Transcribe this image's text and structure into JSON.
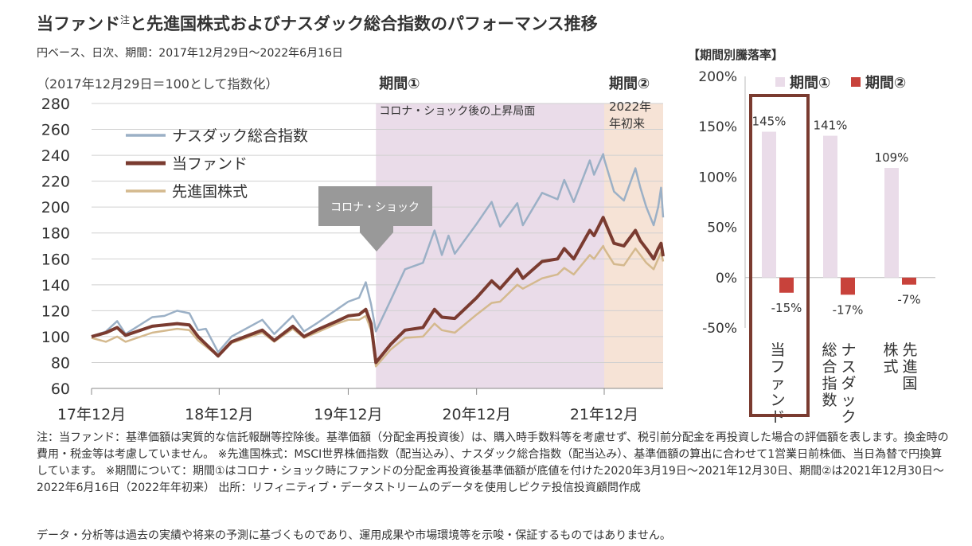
{
  "title": "当ファンド",
  "title_sup": "注",
  "title_rest": "と先進国株式およびナスダック総合指数のパフォーマンス推移",
  "subtitle": "円ベース、日次、期間：2017年12月29日～2022年6月16日",
  "chart_data": [
    {
      "type": "line",
      "note": "（2017年12月29日＝100として指数化）",
      "ylim": [
        60,
        280
      ],
      "yticks": [
        "60",
        "80",
        "100",
        "120",
        "140",
        "160",
        "180",
        "200",
        "220",
        "240",
        "260",
        "280"
      ],
      "xticks": [
        "17年12月",
        "18年12月",
        "19年12月",
        "20年12月",
        "21年12月"
      ],
      "x_range": [
        "2017-12-29",
        "2022-06-16"
      ],
      "period1": {
        "label": "期間①",
        "desc": "コロナ・ショック後の上昇局面",
        "start": "2020-03-19",
        "end": "2021-12-30",
        "color": "#eadce9"
      },
      "period2": {
        "label": "期間②",
        "desc1": "2022年",
        "desc2": "年初来",
        "start": "2021-12-30",
        "end": "2022-06-16",
        "color": "#f6e3d6"
      },
      "callout": "コロナ・ショック",
      "series": [
        {
          "name": "ナスダック総合指数",
          "color": "#9bb0c6",
          "width": 2.5,
          "points": [
            [
              "2017-12-29",
              100
            ],
            [
              "2018-02-08",
              104
            ],
            [
              "2018-03-12",
              112
            ],
            [
              "2018-04-05",
              102
            ],
            [
              "2018-06-20",
              115
            ],
            [
              "2018-07-25",
              116
            ],
            [
              "2018-08-30",
              120
            ],
            [
              "2018-10-04",
              118
            ],
            [
              "2018-10-29",
              105
            ],
            [
              "2018-11-20",
              106
            ],
            [
              "2018-12-25",
              88
            ],
            [
              "2019-02-01",
              100
            ],
            [
              "2019-04-30",
              113
            ],
            [
              "2019-06-03",
              102
            ],
            [
              "2019-07-26",
              116
            ],
            [
              "2019-08-27",
              104
            ],
            [
              "2019-10-01",
              110
            ],
            [
              "2019-11-29",
              121
            ],
            [
              "2019-12-31",
              127
            ],
            [
              "2020-01-31",
              130
            ],
            [
              "2020-02-19",
              142
            ],
            [
              "2020-03-05",
              125
            ],
            [
              "2020-03-19",
              104
            ],
            [
              "2020-04-30",
              128
            ],
            [
              "2020-06-10",
              152
            ],
            [
              "2020-07-31",
              157
            ],
            [
              "2020-09-02",
              182
            ],
            [
              "2020-09-23",
              163
            ],
            [
              "2020-10-12",
              178
            ],
            [
              "2020-10-30",
              164
            ],
            [
              "2020-12-31",
              187
            ],
            [
              "2021-02-12",
              204
            ],
            [
              "2021-03-08",
              185
            ],
            [
              "2021-04-26",
              203
            ],
            [
              "2021-05-12",
              186
            ],
            [
              "2021-07-06",
              211
            ],
            [
              "2021-08-19",
              206
            ],
            [
              "2021-09-07",
              221
            ],
            [
              "2021-10-04",
              204
            ],
            [
              "2021-11-19",
              236
            ],
            [
              "2021-12-01",
              225
            ],
            [
              "2021-12-27",
              241
            ],
            [
              "2021-12-30",
              237
            ],
            [
              "2022-01-27",
              212
            ],
            [
              "2022-02-24",
              205
            ],
            [
              "2022-03-29",
              230
            ],
            [
              "2022-04-12",
              215
            ],
            [
              "2022-04-29",
              200
            ],
            [
              "2022-05-20",
              186
            ],
            [
              "2022-06-02",
              200
            ],
            [
              "2022-06-10",
              215
            ],
            [
              "2022-06-16",
              192
            ]
          ]
        },
        {
          "name": "当ファンド",
          "color": "#7a3b30",
          "width": 4,
          "points": [
            [
              "2017-12-29",
              100
            ],
            [
              "2018-02-08",
              103
            ],
            [
              "2018-03-12",
              107
            ],
            [
              "2018-04-05",
              101
            ],
            [
              "2018-06-20",
              108
            ],
            [
              "2018-08-30",
              110
            ],
            [
              "2018-10-04",
              109
            ],
            [
              "2018-10-29",
              100
            ],
            [
              "2018-12-25",
              85
            ],
            [
              "2019-02-01",
              96
            ],
            [
              "2019-04-30",
              105
            ],
            [
              "2019-06-03",
              97
            ],
            [
              "2019-07-26",
              108
            ],
            [
              "2019-08-27",
              100
            ],
            [
              "2019-10-01",
              105
            ],
            [
              "2019-11-29",
              112
            ],
            [
              "2019-12-31",
              116
            ],
            [
              "2020-01-31",
              117
            ],
            [
              "2020-02-19",
              121
            ],
            [
              "2020-03-05",
              110
            ],
            [
              "2020-03-19",
              80
            ],
            [
              "2020-04-30",
              94
            ],
            [
              "2020-06-10",
              105
            ],
            [
              "2020-07-31",
              107
            ],
            [
              "2020-09-02",
              121
            ],
            [
              "2020-09-23",
              115
            ],
            [
              "2020-10-30",
              114
            ],
            [
              "2020-12-31",
              130
            ],
            [
              "2021-02-12",
              143
            ],
            [
              "2021-03-08",
              137
            ],
            [
              "2021-04-26",
              152
            ],
            [
              "2021-05-12",
              145
            ],
            [
              "2021-07-06",
              158
            ],
            [
              "2021-08-19",
              160
            ],
            [
              "2021-09-07",
              168
            ],
            [
              "2021-10-04",
              160
            ],
            [
              "2021-11-19",
              182
            ],
            [
              "2021-12-01",
              178
            ],
            [
              "2021-12-27",
              192
            ],
            [
              "2021-12-30",
              190
            ],
            [
              "2022-01-27",
              172
            ],
            [
              "2022-02-24",
              170
            ],
            [
              "2022-03-29",
              182
            ],
            [
              "2022-04-12",
              174
            ],
            [
              "2022-04-29",
              168
            ],
            [
              "2022-05-20",
              160
            ],
            [
              "2022-06-02",
              168
            ],
            [
              "2022-06-10",
              172
            ],
            [
              "2022-06-16",
              162
            ]
          ]
        },
        {
          "name": "先進国株式",
          "color": "#d4b98e",
          "width": 2.5,
          "points": [
            [
              "2017-12-29",
              99
            ],
            [
              "2018-02-08",
              96
            ],
            [
              "2018-03-12",
              100
            ],
            [
              "2018-04-05",
              96
            ],
            [
              "2018-06-20",
              103
            ],
            [
              "2018-08-30",
              106
            ],
            [
              "2018-10-04",
              105
            ],
            [
              "2018-10-29",
              97
            ],
            [
              "2018-12-25",
              85
            ],
            [
              "2019-02-01",
              95
            ],
            [
              "2019-04-30",
              103
            ],
            [
              "2019-06-03",
              96
            ],
            [
              "2019-07-26",
              106
            ],
            [
              "2019-08-27",
              99
            ],
            [
              "2019-10-01",
              103
            ],
            [
              "2019-11-29",
              110
            ],
            [
              "2019-12-31",
              113
            ],
            [
              "2020-01-31",
              113
            ],
            [
              "2020-02-19",
              116
            ],
            [
              "2020-03-05",
              105
            ],
            [
              "2020-03-19",
              77
            ],
            [
              "2020-04-30",
              90
            ],
            [
              "2020-06-10",
              99
            ],
            [
              "2020-07-31",
              100
            ],
            [
              "2020-09-02",
              110
            ],
            [
              "2020-09-23",
              105
            ],
            [
              "2020-10-30",
              103
            ],
            [
              "2020-12-31",
              117
            ],
            [
              "2021-02-12",
              126
            ],
            [
              "2021-03-08",
              127
            ],
            [
              "2021-04-26",
              140
            ],
            [
              "2021-05-12",
              137
            ],
            [
              "2021-07-06",
              145
            ],
            [
              "2021-08-19",
              148
            ],
            [
              "2021-09-07",
              153
            ],
            [
              "2021-10-04",
              148
            ],
            [
              "2021-11-19",
              163
            ],
            [
              "2021-12-01",
              160
            ],
            [
              "2021-12-27",
              170
            ],
            [
              "2021-12-30",
              168
            ],
            [
              "2022-01-27",
              156
            ],
            [
              "2022-02-24",
              155
            ],
            [
              "2022-03-29",
              168
            ],
            [
              "2022-04-12",
              163
            ],
            [
              "2022-04-29",
              157
            ],
            [
              "2022-05-20",
              152
            ],
            [
              "2022-06-02",
              160
            ],
            [
              "2022-06-10",
              165
            ],
            [
              "2022-06-16",
              158
            ]
          ]
        }
      ]
    },
    {
      "type": "bar",
      "title": "【期間別騰落率】",
      "ylim": [
        -50,
        200
      ],
      "yticks": [
        "-50%",
        "0%",
        "50%",
        "100%",
        "150%",
        "200%"
      ],
      "categories": [
        "当ファンド",
        "ナスダック総合指数",
        "先進国株式"
      ],
      "category_lines": [
        [
          "当ファンド"
        ],
        [
          "ナスダック",
          "総合指数"
        ],
        [
          "先進国",
          "株式"
        ]
      ],
      "highlight_category": "当ファンド",
      "series": [
        {
          "name": "期間①",
          "color": "#eadce9",
          "values": [
            145,
            141,
            109
          ],
          "labels": [
            "145%",
            "141%",
            "109%"
          ]
        },
        {
          "name": "期間②",
          "color": "#c8423b",
          "values": [
            -15,
            -17,
            -7
          ],
          "labels": [
            "-15%",
            "-17%",
            "-7%"
          ]
        }
      ]
    }
  ],
  "notes": "注：当ファンド：基準価額は実質的な信託報酬等控除後。基準価額（分配金再投資後）は、購入時手数料等を考慮せず、税引前分配金を再投資した場合の評価額を表します。換金時の費用・税金等は考慮していません。 ※先進国株式：MSCI世界株価指数（配当込み）、ナスダック総合指数（配当込み）、基準価額の算出に合わせて1営業日前株価、当日為替で円換算しています。 ※期間について：期間①はコロナ・ショック時にファンドの分配金再投資後基準価額が底値を付けた2020年3月19日～2021年12月30日、期間②は2021年12月30日～2022年6月16日（2022年年初来） 出所：リフィニティブ・データストリームのデータを使用しピクテ投信投資顧問作成",
  "disclaimer": "データ・分析等は過去の実績や将来の予測に基づくものであり、運用成果や市場環境等を示唆・保証するものではありません。"
}
